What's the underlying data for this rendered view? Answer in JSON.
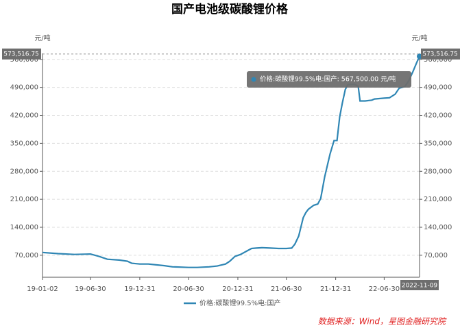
{
  "chart_data": {
    "type": "line",
    "title": "国产电池级碳酸锂价格",
    "y_label": "元/吨",
    "source": "数据来源：Wind，星图金融研究院",
    "xlim": [
      "2019-01-02",
      "2022-11-09"
    ],
    "xticks": [
      {
        "value": "2019-01-02",
        "label": "19-01-02"
      },
      {
        "value": "2019-06-30",
        "label": "19-06-30"
      },
      {
        "value": "2019-12-31",
        "label": "19-12-31"
      },
      {
        "value": "2020-06-30",
        "label": "20-06-30"
      },
      {
        "value": "2020-12-31",
        "label": "20-12-31"
      },
      {
        "value": "2021-06-30",
        "label": "21-06-30"
      },
      {
        "value": "2021-12-31",
        "label": "21-12-31"
      },
      {
        "value": "2022-06-30",
        "label": "22-06-30"
      }
    ],
    "ylim": [
      15000,
      575000
    ],
    "yticks": [
      {
        "value": 70000,
        "label": "70,000"
      },
      {
        "value": 140000,
        "label": "140,000"
      },
      {
        "value": 210000,
        "label": "210,000"
      },
      {
        "value": 280000,
        "label": "280,000"
      },
      {
        "value": 350000,
        "label": "350,000"
      },
      {
        "value": 420000,
        "label": "420,000"
      },
      {
        "value": 490000,
        "label": "490,000"
      },
      {
        "value": 560000,
        "label": "560,000"
      }
    ],
    "grid": true,
    "pointer_y": {
      "value": 573516.75,
      "label": "573,516.75"
    },
    "tooltip": "价格:碳酸锂99.5%电:国产: 567,500.00  元/吨",
    "x": [
      "2019-01-02",
      "2019-03-01",
      "2019-05-01",
      "2019-06-30",
      "2019-08-01",
      "2019-09-01",
      "2019-10-15",
      "2019-11-15",
      "2019-12-01",
      "2019-12-31",
      "2020-02-01",
      "2020-03-01",
      "2020-04-01",
      "2020-05-01",
      "2020-06-30",
      "2020-08-01",
      "2020-09-15",
      "2020-10-15",
      "2020-11-15",
      "2020-12-01",
      "2020-12-20",
      "2021-01-10",
      "2021-02-01",
      "2021-02-20",
      "2021-03-10",
      "2021-04-01",
      "2021-05-01",
      "2021-06-01",
      "2021-06-30",
      "2021-07-20",
      "2021-08-01",
      "2021-08-15",
      "2021-09-01",
      "2021-09-10",
      "2021-09-20",
      "2021-10-10",
      "2021-10-25",
      "2021-11-05",
      "2021-11-20",
      "2021-12-10",
      "2021-12-25",
      "2022-01-05",
      "2022-01-15",
      "2022-01-25",
      "2022-02-05",
      "2022-02-15",
      "2022-03-10",
      "2022-03-25",
      "2022-04-01",
      "2022-04-20",
      "2022-05-15",
      "2022-05-25",
      "2022-06-30",
      "2022-07-20",
      "2022-08-10",
      "2022-08-25",
      "2022-09-15",
      "2022-09-30",
      "2022-10-15",
      "2022-10-30",
      "2022-11-09"
    ],
    "series": [
      {
        "name": "价格:碳酸锂99.5%电:国产",
        "color": "#2f86b4",
        "values": [
          77000,
          74000,
          72000,
          73000,
          67000,
          60000,
          58000,
          55000,
          50000,
          48000,
          48000,
          46000,
          44000,
          41000,
          39500,
          39500,
          41000,
          43000,
          48000,
          55000,
          67000,
          72000,
          80000,
          87000,
          88000,
          89000,
          88000,
          87000,
          87000,
          88000,
          98000,
          118000,
          164000,
          176000,
          185000,
          195000,
          198000,
          212000,
          266000,
          323000,
          357000,
          357000,
          416000,
          451000,
          485000,
          497000,
          498000,
          493000,
          456000,
          456000,
          458000,
          461000,
          463000,
          464000,
          473000,
          488000,
          492000,
          507000,
          529000,
          553000,
          567500
        ]
      }
    ]
  }
}
